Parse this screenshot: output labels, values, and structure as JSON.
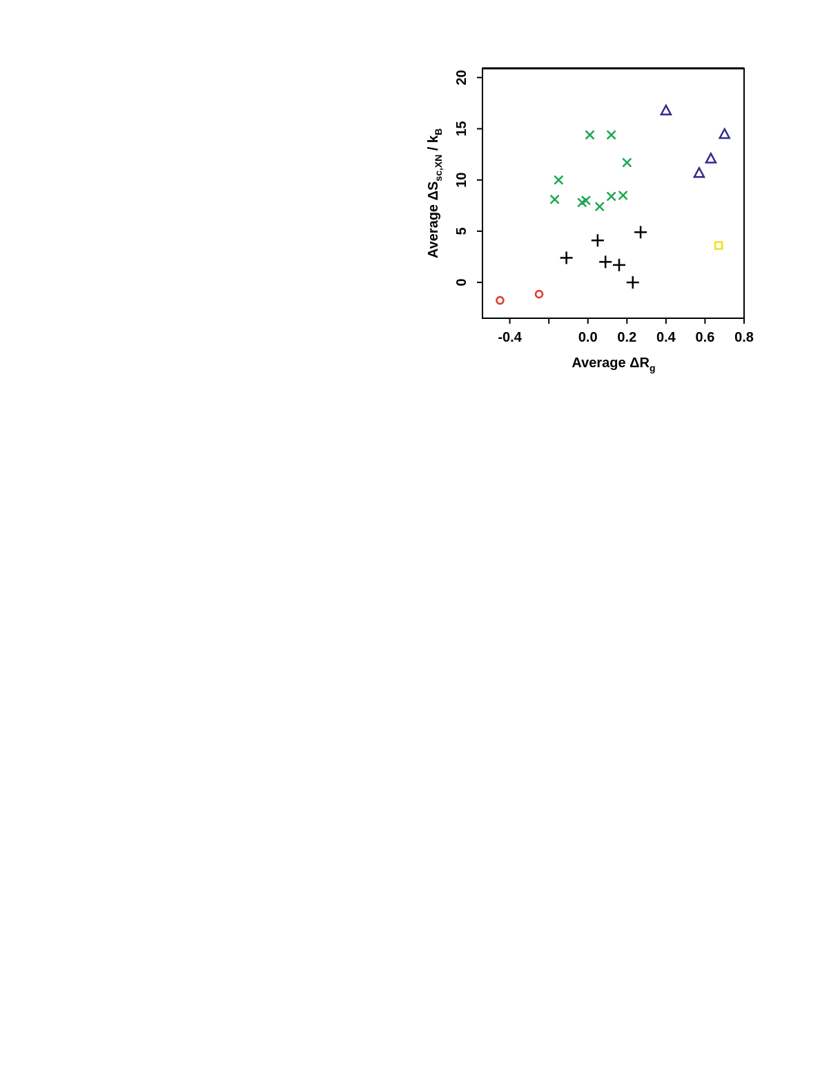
{
  "chart_data": {
    "type": "scatter",
    "xlabel_parts": [
      "Average ΔR",
      "g"
    ],
    "ylabel_parts": [
      "Average ΔS",
      "sc,XN",
      " / k",
      "B"
    ],
    "xlim": [
      -0.54,
      0.8
    ],
    "ylim": [
      -3.5,
      20.9
    ],
    "xticks": [
      -0.4,
      {
        "value": 0,
        "label": "0.0"
      },
      0.2,
      0.4,
      0.6,
      0.8
    ],
    "xminor_ticks": [
      -0.2
    ],
    "yticks": [
      0,
      5,
      10,
      15,
      20
    ],
    "series": [
      {
        "marker": "circle",
        "color": "#e03a2a",
        "x": [
          -0.45,
          -0.25
        ],
        "y": [
          -1.76,
          -1.15
        ]
      },
      {
        "marker": "x",
        "color": "#1aa850",
        "x": [
          -0.17,
          -0.15,
          -0.03,
          -0.01,
          0.01,
          0.12,
          0.2,
          0.06,
          0.12,
          0.18
        ],
        "y": [
          8.1,
          10.0,
          7.8,
          8.0,
          14.4,
          14.4,
          11.7,
          7.4,
          8.4,
          8.5
        ]
      },
      {
        "marker": "plus",
        "color": "#000000",
        "x": [
          -0.11,
          0.05,
          0.09,
          0.16,
          0.23,
          0.27
        ],
        "y": [
          2.4,
          4.1,
          2.0,
          1.7,
          0.0,
          4.9
        ]
      },
      {
        "marker": "triangle",
        "color": "#2e2a8c",
        "x": [
          0.4,
          0.57,
          0.63,
          0.7
        ],
        "y": [
          16.8,
          10.7,
          12.1,
          14.5
        ]
      },
      {
        "marker": "square",
        "color": "#f0e020",
        "x": [
          0.67
        ],
        "y": [
          3.6
        ]
      }
    ]
  }
}
